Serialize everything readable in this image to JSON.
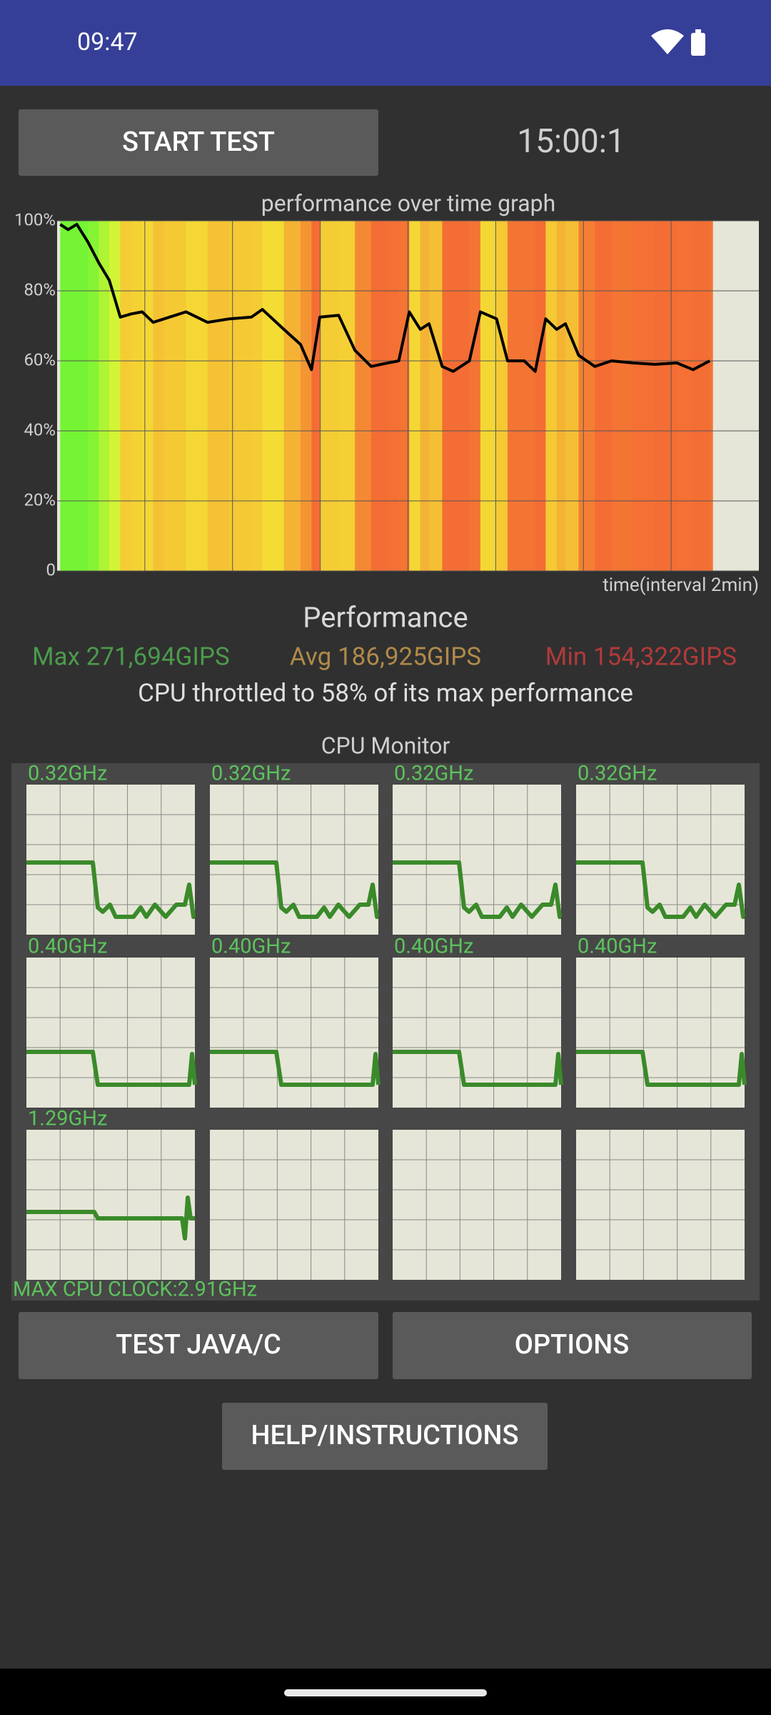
{
  "status_bar": {
    "time": "09:47"
  },
  "buttons": {
    "start_test": "START TEST",
    "test_java_c": "TEST JAVA/C",
    "options": "OPTIONS",
    "help": "HELP/INSTRUCTIONS"
  },
  "timer": "15:00:1",
  "chart_data": {
    "type": "line",
    "title": "performance over time graph",
    "x_label": "time(interval 2min)",
    "x": [
      0.07,
      0.25,
      0.45,
      0.7,
      0.95,
      1.19,
      1.44,
      1.69,
      1.94,
      2.19,
      2.44,
      2.94,
      3.43,
      3.93,
      4.43,
      4.68,
      5.17,
      5.55,
      5.8,
      5.99,
      6.42,
      6.79,
      7.16,
      7.54,
      7.79,
      8.03,
      8.28,
      8.48,
      8.78,
      9.03,
      9.4,
      9.65,
      10.02,
      10.27,
      10.65,
      10.9,
      11.14,
      11.39,
      11.59,
      11.89,
      12.26,
      12.64,
      13.13,
      13.63,
      14.13,
      14.5,
      14.88
    ],
    "values": [
      99,
      97.5,
      99,
      94,
      88,
      83,
      72.5,
      73.4,
      74,
      71,
      72,
      74,
      71,
      72,
      72.5,
      74.7,
      69,
      64.7,
      57.5,
      72.5,
      73,
      63,
      58.4,
      59.4,
      60,
      74,
      69,
      70.6,
      58.4,
      57,
      60,
      74,
      72,
      60,
      60,
      57,
      72,
      69,
      70.6,
      61.6,
      58.4,
      60,
      59.4,
      59,
      59.4,
      57.5,
      60
    ],
    "color": "#000000",
    "xlim": [
      0,
      16
    ],
    "xticks": [
      2,
      4,
      6,
      8,
      10,
      12,
      14
    ],
    "ylim": [
      0,
      100
    ],
    "yticks": [
      0,
      {
        "value": 20,
        "label": "20%"
      },
      {
        "value": 40,
        "label": "40%"
      },
      {
        "value": 60,
        "label": "60%"
      },
      {
        "value": 80,
        "label": "80%"
      },
      {
        "value": 100,
        "label": "100%"
      }
    ],
    "grid": true
  },
  "performance": {
    "title": "Performance",
    "max": "Max 271,694GIPS",
    "avg": "Avg 186,925GIPS",
    "min": "Min 154,322GIPS",
    "summary": "CPU throttled to 58% of its max performance"
  },
  "cpu_monitor": {
    "title": "CPU Monitor",
    "cores": [
      "0.32GHz",
      "0.32GHz",
      "0.32GHz",
      "0.32GHz",
      "0.40GHz",
      "0.40GHz",
      "0.40GHz",
      "0.40GHz",
      "1.29GHz"
    ],
    "max_clock": "MAX CPU CLOCK:2.91GHz"
  }
}
